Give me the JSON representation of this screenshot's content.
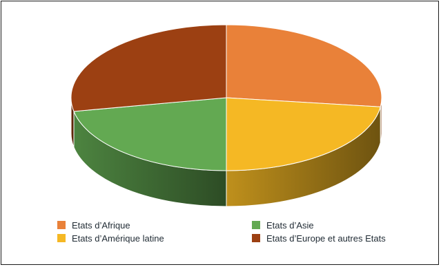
{
  "chart_data": {
    "type": "pie",
    "style": "3d",
    "slices": [
      {
        "label": "Etats d’Afrique",
        "value": 27,
        "color": "#E98139"
      },
      {
        "label": "Etats d’Amérique latine",
        "value": 23,
        "color": "#F5B824"
      },
      {
        "label": "Etats d’Asie",
        "value": 22,
        "color": "#63A952"
      },
      {
        "label": "Etats d’Europe et autres Etats",
        "value": 28,
        "color": "#9C4012"
      }
    ],
    "legend": {
      "position": "bottom",
      "items": [
        {
          "label": "Etats d’Afrique",
          "color": "#E98139"
        },
        {
          "label": "Etats d’Asie",
          "color": "#63A952"
        },
        {
          "label": "Etats d’Amérique latine",
          "color": "#F5B824"
        },
        {
          "label": "Etats d’Europe et autres Etats",
          "color": "#9C4012"
        }
      ]
    }
  }
}
